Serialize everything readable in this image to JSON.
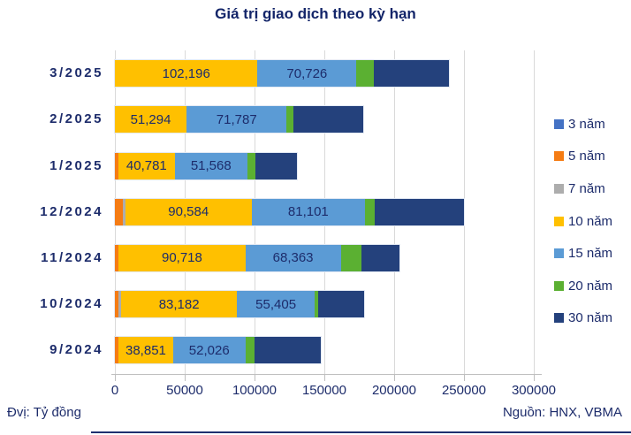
{
  "title": "Giá trị giao dịch theo kỳ hạn",
  "footer": {
    "unit": "Đvị: Tỷ đồng",
    "source": "Nguồn: HNX, VBMA"
  },
  "colors": {
    "text_navy": "#1d2c6b",
    "gridline": "#d9d9d9",
    "axis": "#bfbfbf",
    "bottom_rule": "#1f3070"
  },
  "chart_data": {
    "type": "bar",
    "orientation": "horizontal",
    "stacked": true,
    "title": "Giá trị giao dịch theo kỳ hạn",
    "unit": "Tỷ đồng",
    "categories": [
      "3/2025",
      "2/2025",
      "1/2025",
      "12/2024",
      "11/2024",
      "10/2024",
      "9/2024"
    ],
    "series": [
      {
        "name": "3 năm",
        "color": "#4472c4",
        "labeled": false,
        "values": [
          0,
          0,
          0,
          0,
          0,
          0,
          0
        ]
      },
      {
        "name": "5 năm",
        "color": "#f57c14",
        "labeled": false,
        "values": [
          0,
          0,
          2300,
          5700,
          2700,
          2700,
          2700
        ]
      },
      {
        "name": "7 năm",
        "color": "#adadad",
        "labeled": false,
        "values": [
          0,
          0,
          0,
          1700,
          0,
          1700,
          0
        ]
      },
      {
        "name": "10 năm",
        "color": "#ffc000",
        "labeled": true,
        "values": [
          102196,
          51294,
          40781,
          90584,
          90718,
          83182,
          38851
        ]
      },
      {
        "name": "15 năm",
        "color": "#5b9bd5",
        "labeled": true,
        "values": [
          70726,
          71787,
          51568,
          81101,
          68363,
          55405,
          52026
        ]
      },
      {
        "name": "20 năm",
        "color": "#5bb032",
        "labeled": false,
        "values": [
          12500,
          4900,
          5700,
          7300,
          14600,
          2500,
          6300
        ]
      },
      {
        "name": "30 năm",
        "color": "#24417c",
        "labeled": false,
        "values": [
          53800,
          50000,
          30200,
          63700,
          27400,
          32900,
          47500
        ]
      }
    ],
    "xlim": [
      0,
      300000
    ],
    "xticks": [
      0,
      50000,
      100000,
      150000,
      200000,
      250000,
      300000
    ],
    "xtick_labels": [
      "0",
      "50000",
      "100000",
      "150000",
      "200000",
      "250000",
      "300000"
    ],
    "grid": true,
    "legend_position": "right",
    "data_labels_on": [
      "10 năm",
      "15 năm"
    ],
    "data_label_format": "thousands-comma"
  }
}
